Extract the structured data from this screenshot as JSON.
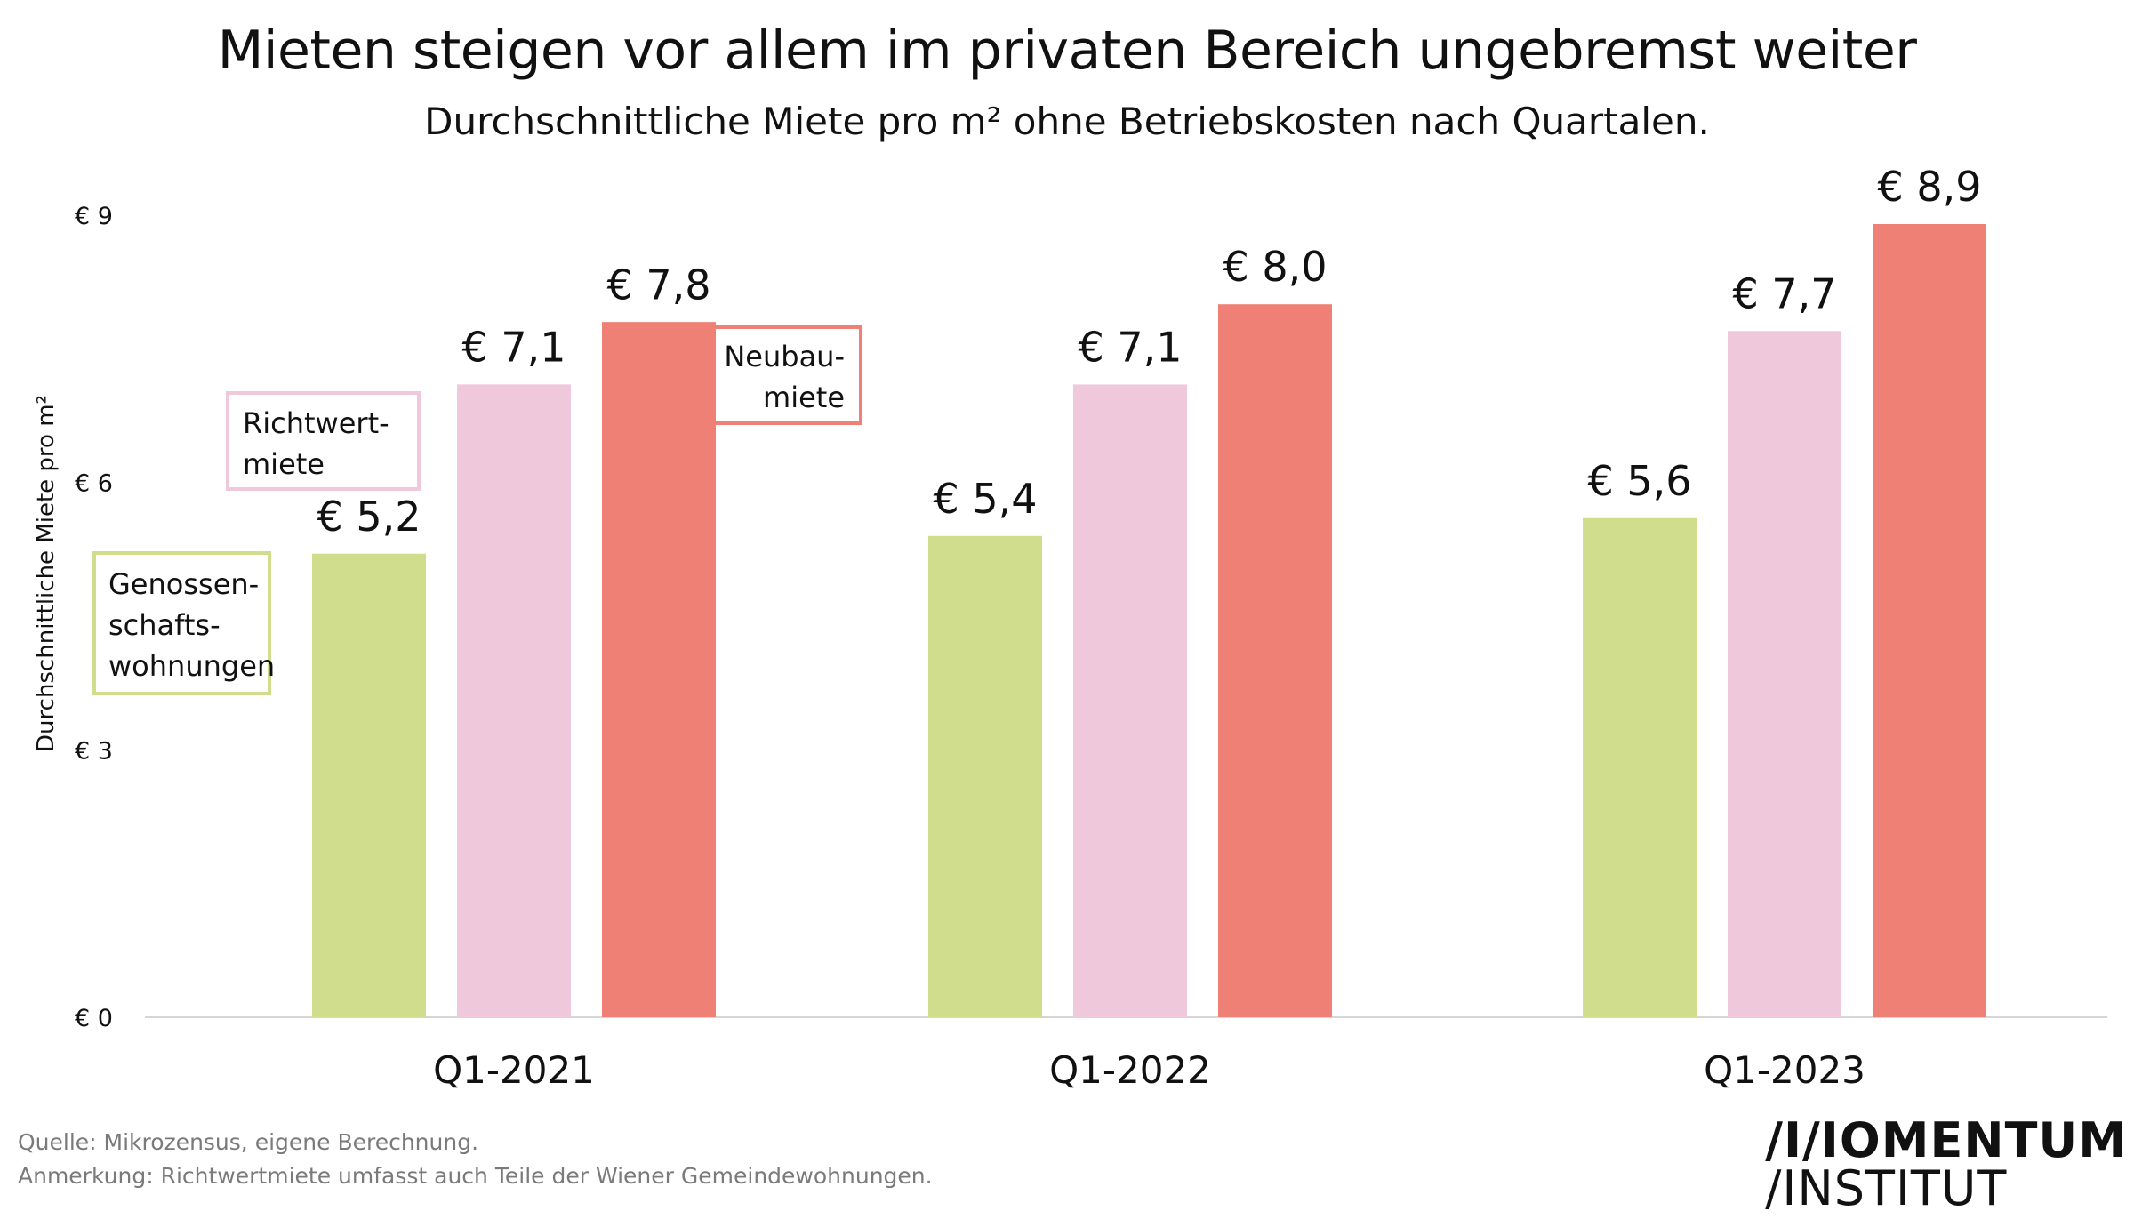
{
  "header": {
    "title": "Mieten steigen vor allem im privaten Bereich ungebremst weiter",
    "subtitle": "Durchschnittliche Miete pro m² ohne Betriebskosten nach Quartalen."
  },
  "chart_data": {
    "type": "bar",
    "categories": [
      "Q1-2021",
      "Q1-2022",
      "Q1-2023"
    ],
    "series": [
      {
        "name": "Genossenschaftswohnungen",
        "label_lines": [
          "Genossen-",
          "schafts-",
          "wohnungen"
        ],
        "color": "#cfdd8d",
        "values": [
          5.2,
          5.4,
          5.6
        ],
        "labels": [
          "€ 5,2",
          "€ 5,4",
          "€ 5,6"
        ]
      },
      {
        "name": "Richtwertmiete",
        "label_lines": [
          "Richtwert-",
          "miete"
        ],
        "color": "#f0c8dc",
        "values": [
          7.1,
          7.1,
          7.7
        ],
        "labels": [
          "€ 7,1",
          "€ 7,1",
          "€ 7,7"
        ]
      },
      {
        "name": "Neubaumiete",
        "label_lines": [
          "Neubau-",
          "miete"
        ],
        "color": "#ee8075",
        "values": [
          7.8,
          8.0,
          8.9
        ],
        "labels": [
          "€ 7,8",
          "€ 8,0",
          "€ 8,9"
        ]
      }
    ],
    "ylabel": "Durchschnittliche Miete pro m²",
    "ylim": [
      0,
      9
    ],
    "yticks": [
      0,
      3,
      6,
      9
    ],
    "ytick_labels": [
      "€ 0",
      "€ 3",
      "€ 6",
      "€ 9"
    ],
    "grid": false,
    "legend": "inline-labels"
  },
  "footer": {
    "source": "Quelle: Mikrozensus, eigene Berechnung.",
    "note": "Anmerkung: Richtwertmiete umfasst auch Teile der Wiener Gemeindewohnungen."
  },
  "logo": {
    "line1": "/I/IOMENTUM",
    "line2": "/INSTITUT"
  }
}
